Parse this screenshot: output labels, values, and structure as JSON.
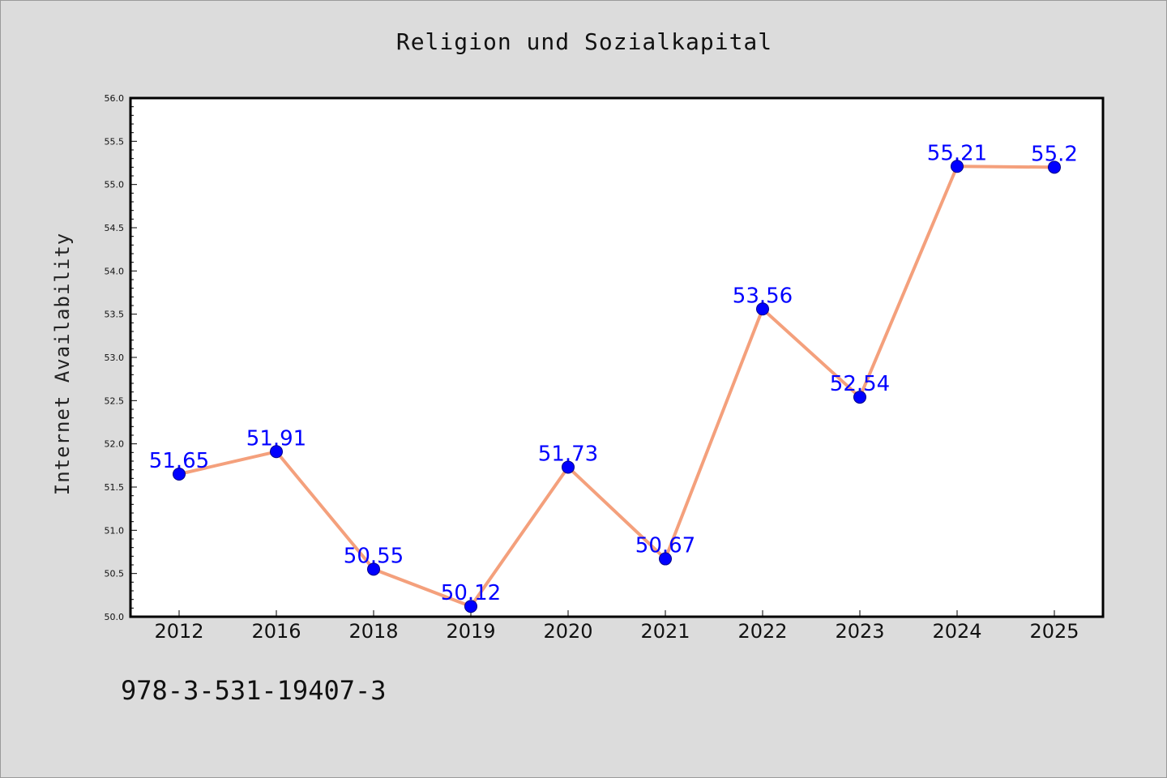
{
  "chart_data": {
    "type": "line",
    "title": "Religion und Sozialkapital",
    "xlabel": "",
    "ylabel": "Internet Availability",
    "categories": [
      "2012",
      "2016",
      "2018",
      "2019",
      "2020",
      "2021",
      "2022",
      "2023",
      "2024",
      "2025"
    ],
    "series": [
      {
        "values": [
          51.65,
          51.91,
          50.55,
          50.12,
          51.73,
          50.67,
          53.56,
          52.54,
          55.21,
          55.2
        ],
        "data_labels": [
          "51.65",
          "51.91",
          "50.55",
          "50.12",
          "51.73",
          "50.67",
          "53.56",
          "52.54",
          "55.21",
          "55.2"
        ],
        "line_color": "#f4a07c",
        "marker_color": "#0000ff",
        "label_color": "#0000ff"
      }
    ],
    "ylim": [
      50.0,
      56.0
    ],
    "yticks": [
      "50.0",
      "50.5",
      "51.0",
      "51.5",
      "52.0",
      "52.5",
      "53.0",
      "53.5",
      "54.0",
      "54.5",
      "55.0",
      "55.5",
      "56.0"
    ],
    "grid": false,
    "legend": "none"
  },
  "footer": {
    "identifier": "978-3-531-19407-3"
  },
  "colors": {
    "background": "#dcdcdc",
    "plot_area": "#ffffff",
    "axes": "#000000"
  }
}
